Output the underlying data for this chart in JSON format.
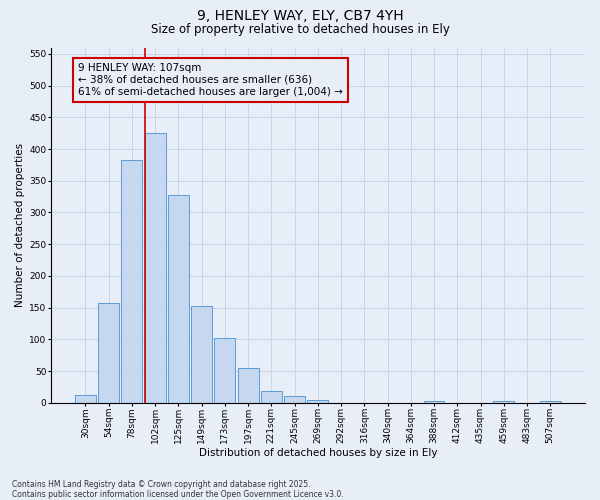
{
  "title_line1": "9, HENLEY WAY, ELY, CB7 4YH",
  "title_line2": "Size of property relative to detached houses in Ely",
  "xlabel": "Distribution of detached houses by size in Ely",
  "ylabel": "Number of detached properties",
  "bar_labels": [
    "30sqm",
    "54sqm",
    "78sqm",
    "102sqm",
    "125sqm",
    "149sqm",
    "173sqm",
    "197sqm",
    "221sqm",
    "245sqm",
    "269sqm",
    "292sqm",
    "316sqm",
    "340sqm",
    "364sqm",
    "388sqm",
    "412sqm",
    "435sqm",
    "459sqm",
    "483sqm",
    "507sqm"
  ],
  "bar_values": [
    12,
    157,
    383,
    425,
    328,
    152,
    102,
    55,
    18,
    10,
    5,
    0,
    0,
    0,
    0,
    3,
    0,
    0,
    3,
    0,
    3
  ],
  "bar_color": "#c5d8f0",
  "bar_edge_color": "#5b9bd5",
  "vline_index": 3,
  "vline_color": "#cc0000",
  "annotation_line1": "9 HENLEY WAY: 107sqm",
  "annotation_line2": "← 38% of detached houses are smaller (636)",
  "annotation_line3": "61% of semi-detached houses are larger (1,004) →",
  "annotation_box_edgecolor": "#cc0000",
  "ylim": [
    0,
    560
  ],
  "yticks": [
    0,
    50,
    100,
    150,
    200,
    250,
    300,
    350,
    400,
    450,
    500,
    550
  ],
  "grid_color": "#c8d4e8",
  "bg_color": "#e8eef8",
  "footer_text": "Contains HM Land Registry data © Crown copyright and database right 2025.\nContains public sector information licensed under the Open Government Licence v3.0.",
  "title_fontsize": 10,
  "subtitle_fontsize": 8.5,
  "xlabel_fontsize": 7.5,
  "ylabel_fontsize": 7.5,
  "tick_fontsize": 6.5,
  "annot_fontsize": 7.5
}
